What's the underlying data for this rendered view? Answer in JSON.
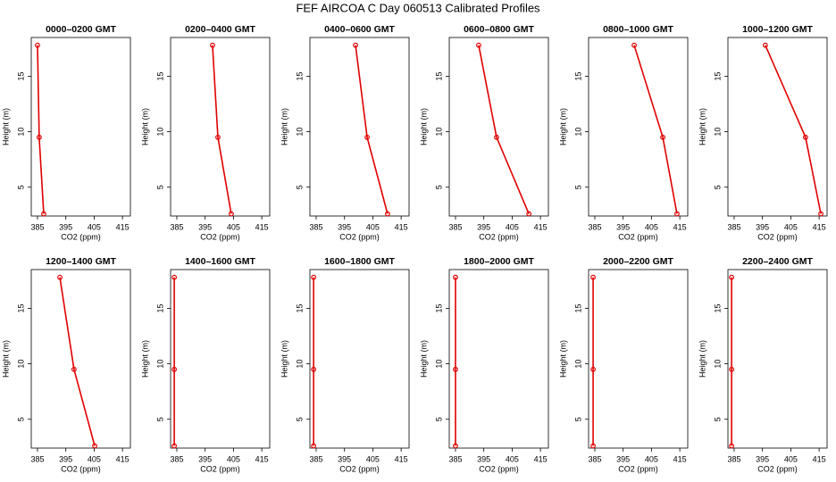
{
  "title": "FEF AIRCOA C  Day 060513  Calibrated Profiles",
  "chart_data": [
    {
      "type": "line",
      "title": "0000–0200 GMT",
      "x_label": "CO2 (ppm)",
      "y_label": "Height (m)",
      "color": "#e00000",
      "x": [
        385.0,
        385.6,
        387.2
      ],
      "values": [
        17.8,
        9.5,
        2.6
      ],
      "xlim": [
        382.8,
        417.8
      ],
      "ylim": [
        2.4,
        18.5
      ],
      "xticks": [
        385,
        395,
        405,
        415
      ],
      "yticks": [
        5,
        10,
        15
      ]
    },
    {
      "type": "line",
      "title": "0200–0400 GMT",
      "x_label": "CO2 (ppm)",
      "y_label": "Height (m)",
      "color": "#e00000",
      "x": [
        397.6,
        399.5,
        404.2
      ],
      "values": [
        17.8,
        9.5,
        2.6
      ],
      "xlim": [
        382.8,
        417.8
      ],
      "ylim": [
        2.4,
        18.5
      ],
      "xticks": [
        385,
        395,
        405,
        415
      ],
      "yticks": [
        5,
        10,
        15
      ]
    },
    {
      "type": "line",
      "title": "0400–0600 GMT",
      "x_label": "CO2 (ppm)",
      "y_label": "Height (m)",
      "color": "#e00000",
      "x": [
        398.9,
        403.0,
        410.2
      ],
      "values": [
        17.8,
        9.5,
        2.6
      ],
      "xlim": [
        382.8,
        417.8
      ],
      "ylim": [
        2.4,
        18.5
      ],
      "xticks": [
        385,
        395,
        405,
        415
      ],
      "yticks": [
        5,
        10,
        15
      ]
    },
    {
      "type": "line",
      "title": "0600–0800 GMT",
      "x_label": "CO2 (ppm)",
      "y_label": "Height (m)",
      "color": "#e00000",
      "x": [
        393.2,
        399.5,
        410.9
      ],
      "values": [
        17.8,
        9.5,
        2.6
      ],
      "xlim": [
        382.8,
        417.8
      ],
      "ylim": [
        2.4,
        18.5
      ],
      "xticks": [
        385,
        395,
        405,
        415
      ],
      "yticks": [
        5,
        10,
        15
      ]
    },
    {
      "type": "line",
      "title": "0800–1000 GMT",
      "x_label": "CO2 (ppm)",
      "y_label": "Height (m)",
      "color": "#e00000",
      "x": [
        398.9,
        409.0,
        414.0
      ],
      "values": [
        17.8,
        9.5,
        2.6
      ],
      "xlim": [
        382.8,
        417.8
      ],
      "ylim": [
        2.4,
        18.5
      ],
      "xticks": [
        385,
        395,
        405,
        415
      ],
      "yticks": [
        5,
        10,
        15
      ]
    },
    {
      "type": "line",
      "title": "1000–1200 GMT",
      "x_label": "CO2 (ppm)",
      "y_label": "Height (m)",
      "color": "#e00000",
      "x": [
        396.0,
        410.2,
        415.6
      ],
      "values": [
        17.8,
        9.5,
        2.6
      ],
      "xlim": [
        382.8,
        417.8
      ],
      "ylim": [
        2.4,
        18.5
      ],
      "xticks": [
        385,
        395,
        405,
        415
      ],
      "yticks": [
        5,
        10,
        15
      ]
    },
    {
      "type": "line",
      "title": "1200–1400 GMT",
      "x_label": "CO2 (ppm)",
      "y_label": "Height (m)",
      "color": "#e00000",
      "x": [
        392.9,
        397.9,
        405.2
      ],
      "values": [
        17.8,
        9.5,
        2.6
      ],
      "xlim": [
        382.8,
        417.8
      ],
      "ylim": [
        2.4,
        18.5
      ],
      "xticks": [
        385,
        395,
        405,
        415
      ],
      "yticks": [
        5,
        10,
        15
      ]
    },
    {
      "type": "line",
      "title": "1400–1600 GMT",
      "x_label": "CO2 (ppm)",
      "y_label": "Height (m)",
      "color": "#e00000",
      "x": [
        384.1,
        384.1,
        384.1
      ],
      "values": [
        17.8,
        9.5,
        2.6
      ],
      "xlim": [
        382.8,
        417.8
      ],
      "ylim": [
        2.4,
        18.5
      ],
      "xticks": [
        385,
        395,
        405,
        415
      ],
      "yticks": [
        5,
        10,
        15
      ]
    },
    {
      "type": "line",
      "title": "1600–1800 GMT",
      "x_label": "CO2 (ppm)",
      "y_label": "Height (m)",
      "color": "#e00000",
      "x": [
        384.1,
        384.1,
        384.1
      ],
      "values": [
        17.8,
        9.5,
        2.6
      ],
      "xlim": [
        382.8,
        417.8
      ],
      "ylim": [
        2.4,
        18.5
      ],
      "xticks": [
        385,
        395,
        405,
        415
      ],
      "yticks": [
        5,
        10,
        15
      ]
    },
    {
      "type": "line",
      "title": "1800–2000 GMT",
      "x_label": "CO2 (ppm)",
      "y_label": "Height (m)",
      "color": "#e00000",
      "x": [
        385.0,
        385.0,
        385.0
      ],
      "values": [
        17.8,
        9.5,
        2.6
      ],
      "xlim": [
        382.8,
        417.8
      ],
      "ylim": [
        2.4,
        18.5
      ],
      "xticks": [
        385,
        395,
        405,
        415
      ],
      "yticks": [
        5,
        10,
        15
      ]
    },
    {
      "type": "line",
      "title": "2000–2200 GMT",
      "x_label": "CO2 (ppm)",
      "y_label": "Height (m)",
      "color": "#e00000",
      "x": [
        384.4,
        384.4,
        384.4
      ],
      "values": [
        17.8,
        9.5,
        2.6
      ],
      "xlim": [
        382.8,
        417.8
      ],
      "ylim": [
        2.4,
        18.5
      ],
      "xticks": [
        385,
        395,
        405,
        415
      ],
      "yticks": [
        5,
        10,
        15
      ]
    },
    {
      "type": "line",
      "title": "2200–2400 GMT",
      "x_label": "CO2 (ppm)",
      "y_label": "Height (m)",
      "color": "#e00000",
      "x": [
        384.1,
        384.1,
        384.1
      ],
      "values": [
        17.8,
        9.5,
        2.6
      ],
      "xlim": [
        382.8,
        417.8
      ],
      "ylim": [
        2.4,
        18.5
      ],
      "xticks": [
        385,
        395,
        405,
        415
      ],
      "yticks": [
        5,
        10,
        15
      ]
    }
  ]
}
